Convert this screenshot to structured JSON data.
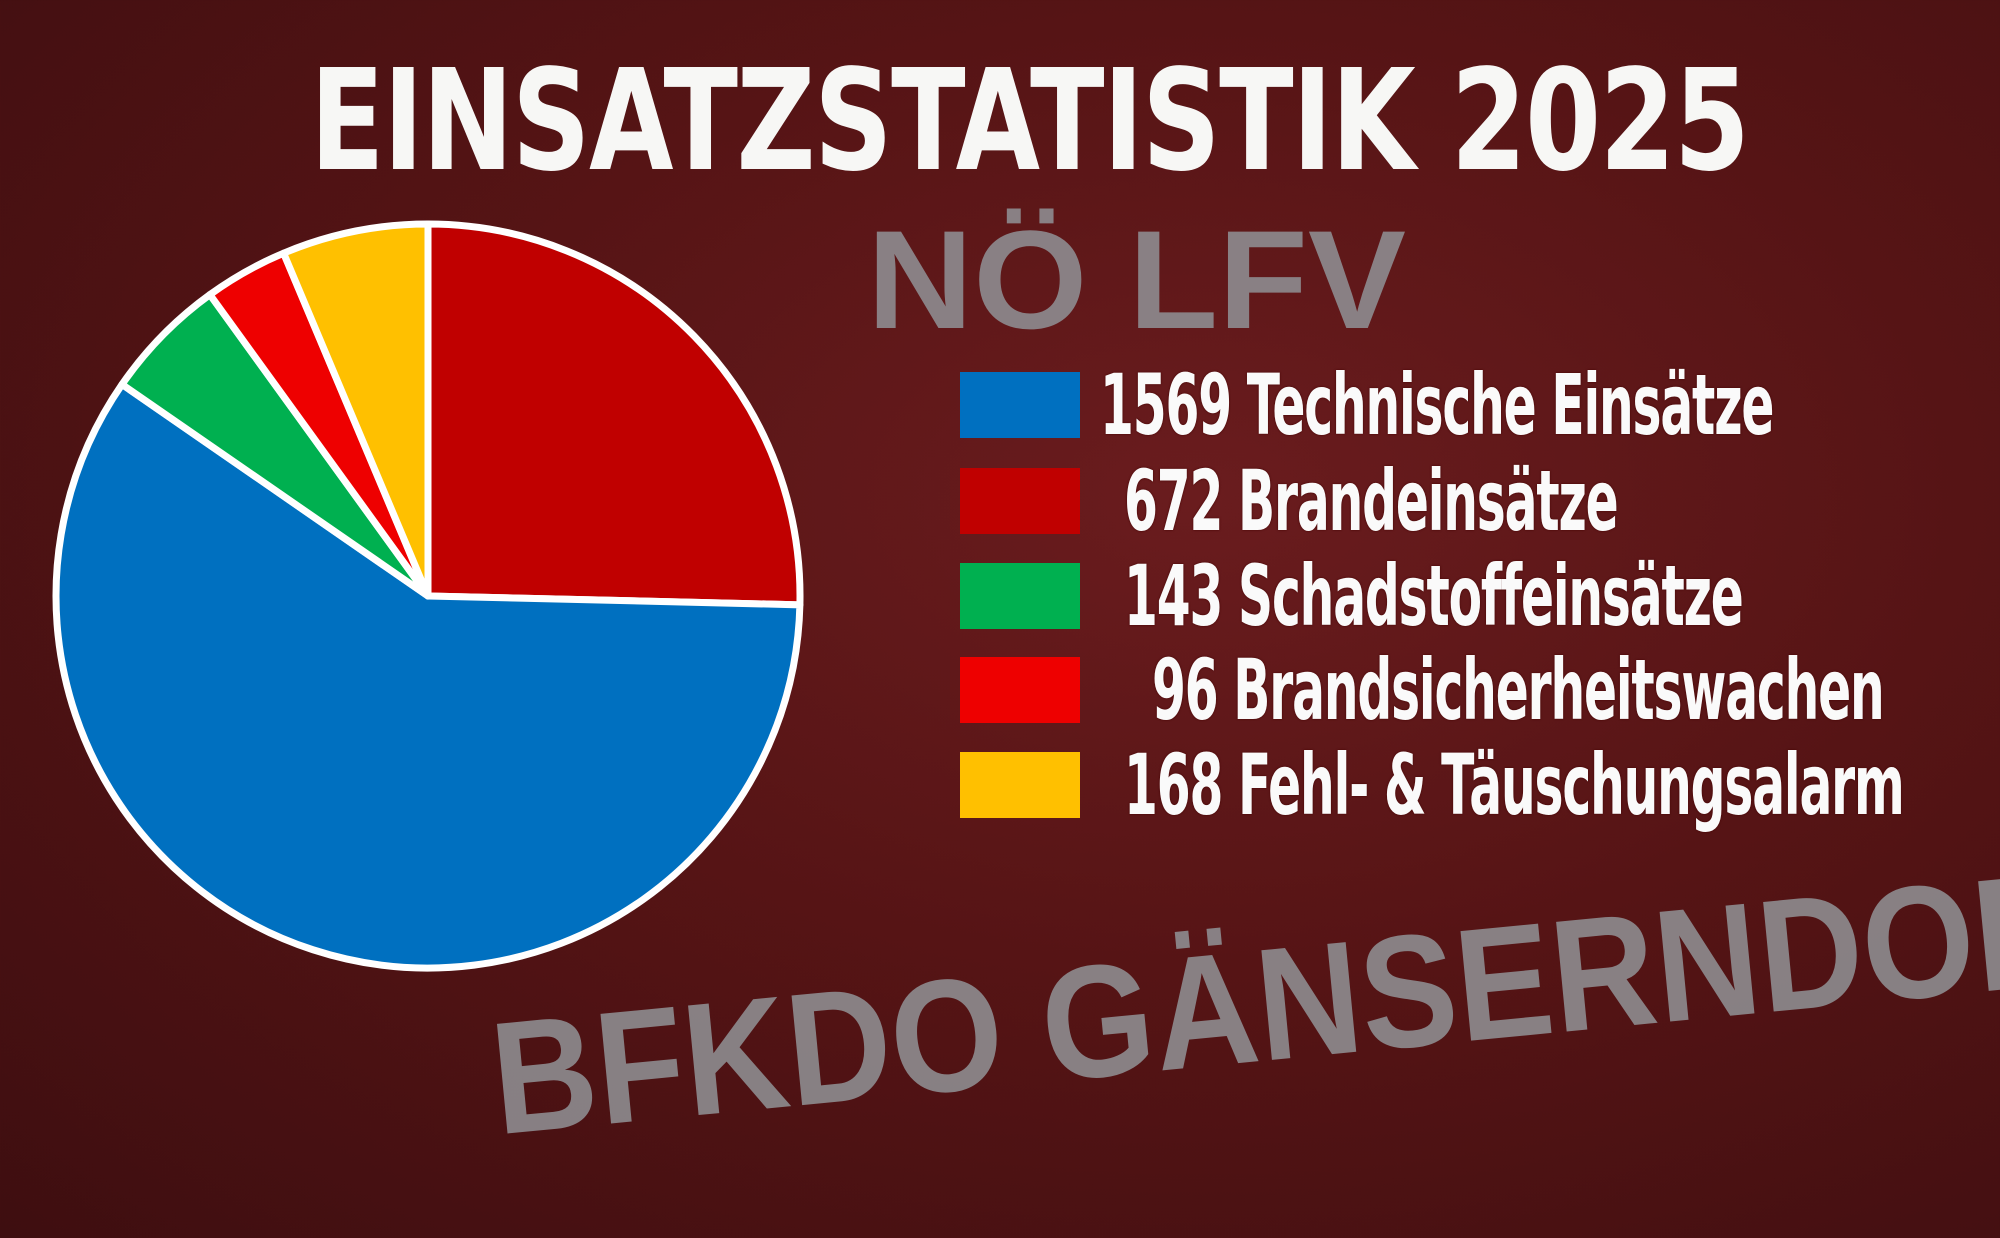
{
  "background": {
    "vehicle_text_top": "NÖ LFV",
    "vehicle_text_bottom": "BFKDO GÄNSERNDORF"
  },
  "chart_data": {
    "type": "pie",
    "title": "EINSATZSTATISTIK 2025",
    "start_angle": "12 o'clock",
    "direction": "clockwise",
    "legend_position": "right",
    "slices": [
      {
        "value": 672,
        "label": "672 Brandeinsätze",
        "color": "#c00000"
      },
      {
        "value": 1569,
        "label": "1569 Technische Einsätze",
        "color": "#0070c0"
      },
      {
        "value": 143,
        "label": "143 Schadstoffeinsätze",
        "color": "#00b050"
      },
      {
        "value": 96,
        "label": "96 Brandsicherheitswachen",
        "color": "#ee0000"
      },
      {
        "value": 168,
        "label": "168 Fehl- & Täuschungsalarm",
        "color": "#ffc000"
      }
    ],
    "legend_order": [
      1,
      0,
      2,
      3,
      4
    ]
  }
}
